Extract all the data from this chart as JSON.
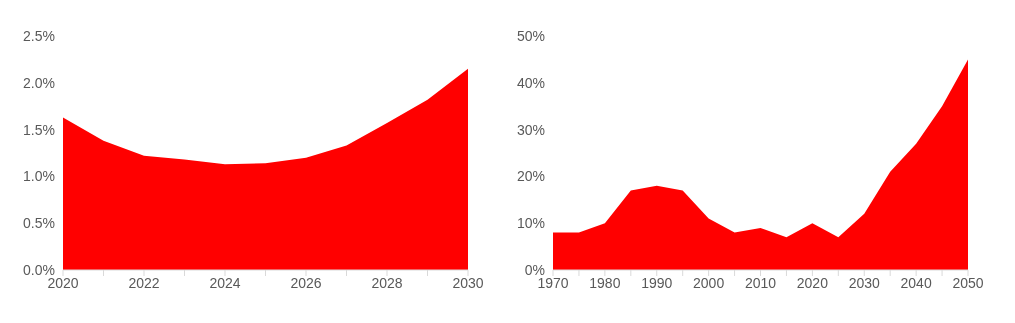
{
  "chart_data": [
    {
      "type": "area",
      "x": [
        2020,
        2021,
        2022,
        2023,
        2024,
        2025,
        2026,
        2027,
        2028,
        2029,
        2030
      ],
      "series": [
        {
          "color": "#ff0000",
          "values": [
            1.63,
            1.38,
            1.22,
            1.18,
            1.13,
            1.14,
            1.2,
            1.33,
            1.57,
            1.82,
            2.15
          ]
        }
      ],
      "xlim": [
        2020,
        2030
      ],
      "xticks": [
        2020,
        {
          "value": 2021,
          "label": null
        },
        2022,
        {
          "value": 2023,
          "label": null
        },
        2024,
        {
          "value": 2025,
          "label": null
        },
        2026,
        {
          "value": 2027,
          "label": null
        },
        2028,
        {
          "value": 2029,
          "label": null
        },
        2030
      ],
      "ylim": [
        0,
        2.5
      ],
      "yticks": [
        {
          "value": 0,
          "label": "0.0%"
        },
        {
          "value": 0.5,
          "label": "0.5%"
        },
        {
          "value": 1,
          "label": "1.0%"
        },
        {
          "value": 1.5,
          "label": "1.5%"
        },
        {
          "value": 2,
          "label": "2.0%"
        },
        {
          "value": 2.5,
          "label": "2.5%"
        }
      ],
      "grid": false,
      "legend": false
    },
    {
      "type": "area",
      "x": [
        1970,
        1975,
        1980,
        1985,
        1990,
        1995,
        2000,
        2005,
        2010,
        2015,
        2020,
        2025,
        2030,
        2035,
        2040,
        2045,
        2050
      ],
      "series": [
        {
          "color": "#ff0000",
          "values": [
            8,
            8,
            10,
            17,
            18,
            17,
            11,
            8,
            9,
            7,
            10,
            7,
            12,
            21,
            27,
            35,
            45
          ]
        }
      ],
      "xlim": [
        1970,
        2050
      ],
      "xticks": [
        1970,
        {
          "value": 1975,
          "label": null
        },
        1980,
        {
          "value": 1985,
          "label": null
        },
        1990,
        {
          "value": 1995,
          "label": null
        },
        2000,
        {
          "value": 2005,
          "label": null
        },
        2010,
        {
          "value": 2015,
          "label": null
        },
        2020,
        {
          "value": 2025,
          "label": null
        },
        2030,
        {
          "value": 2035,
          "label": null
        },
        2040,
        {
          "value": 2045,
          "label": null
        },
        2050
      ],
      "ylim": [
        0,
        50
      ],
      "yticks": [
        {
          "value": 0,
          "label": "0%"
        },
        {
          "value": 10,
          "label": "10%"
        },
        {
          "value": 20,
          "label": "20%"
        },
        {
          "value": 30,
          "label": "30%"
        },
        {
          "value": 40,
          "label": "40%"
        },
        {
          "value": 50,
          "label": "50%"
        }
      ],
      "grid": false,
      "legend": false
    }
  ]
}
